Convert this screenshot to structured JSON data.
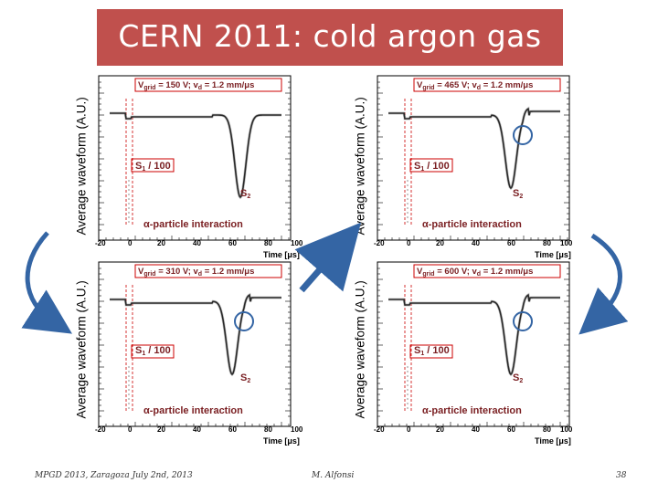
{
  "slide": {
    "title": "CERN 2011: cold argon gas"
  },
  "y_axis_label": "Average waveform (A.U.)",
  "x_axis_label": "Time [μs]",
  "x_ticks": [
    "-20",
    "0",
    "20",
    "40",
    "60",
    "80",
    "100"
  ],
  "panels": [
    {
      "id": "top-left",
      "vgrid_pre": "V",
      "vgrid_sub": "grid",
      "vgrid_post": " = 150 V; v",
      "vd_sub": "d",
      "vd_post": " = 1.2 mm/μs",
      "has_circle": false
    },
    {
      "id": "top-right",
      "vgrid_pre": "V",
      "vgrid_sub": "grid",
      "vgrid_post": " = 465 V; v",
      "vd_sub": "d",
      "vd_post": " = 1.2 mm/μs",
      "has_circle": true
    },
    {
      "id": "bottom-left",
      "vgrid_pre": "V",
      "vgrid_sub": "grid",
      "vgrid_post": " = 310 V; v",
      "vd_sub": "d",
      "vd_post": " = 1.2 mm/μs",
      "has_circle": true
    },
    {
      "id": "bottom-right",
      "vgrid_pre": "V",
      "vgrid_sub": "grid",
      "vgrid_post": " = 600 V; v",
      "vd_sub": "d",
      "vd_post": " = 1.2 mm/μs",
      "has_circle": true
    }
  ],
  "s1_pre": "S",
  "s1_sub": "1",
  "s1_post": " / 100",
  "s2_pre": "S",
  "s2_sub": "2",
  "alpha_label": "α-particle interaction",
  "footer": {
    "left": "MPGD 2013, Zaragoza July 2nd, 2013",
    "center": "M. Alfonsi",
    "right": "38"
  },
  "colors": {
    "title_bar": "#c0504d",
    "arrow": "#3465a4",
    "annotation": "#7a1f22"
  }
}
